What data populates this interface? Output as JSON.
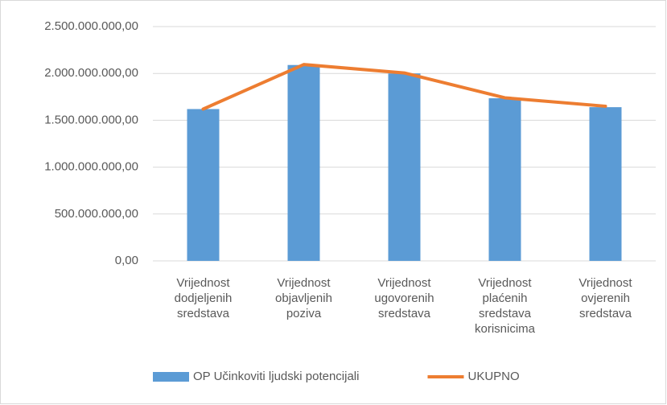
{
  "chart_data": {
    "type": "combo",
    "categories": [
      "Vrijednost dodjeljenih sredstava",
      "Vrijednost objavljenih poziva",
      "Vrijednost ugovorenih sredstava",
      "Vrijednost plaćenih sredstava korisnicima",
      "Vrijednost ovjerenih sredstava"
    ],
    "series": [
      {
        "name": "OP Učinkoviti ljudski potencijali",
        "type": "bar",
        "color": "#5b9bd5",
        "values": [
          1620000000,
          2090000000,
          2000000000,
          1735000000,
          1640000000
        ]
      },
      {
        "name": "UKUPNO",
        "type": "line",
        "color": "#ed7d31",
        "values": [
          1620000000,
          2095000000,
          2005000000,
          1740000000,
          1650000000
        ]
      }
    ],
    "ylim": [
      0,
      2500000000
    ],
    "yticks": [
      {
        "value": 0,
        "label": "0,00"
      },
      {
        "value": 500000000,
        "label": "500.000.000,00"
      },
      {
        "value": 1000000000,
        "label": "1.000.000.000,00"
      },
      {
        "value": 1500000000,
        "label": "1.500.000.000,00"
      },
      {
        "value": 2000000000,
        "label": "2.000.000.000,00"
      },
      {
        "value": 2500000000,
        "label": "2.500.000.000,00"
      }
    ],
    "grid": true,
    "legend": "bottom"
  }
}
